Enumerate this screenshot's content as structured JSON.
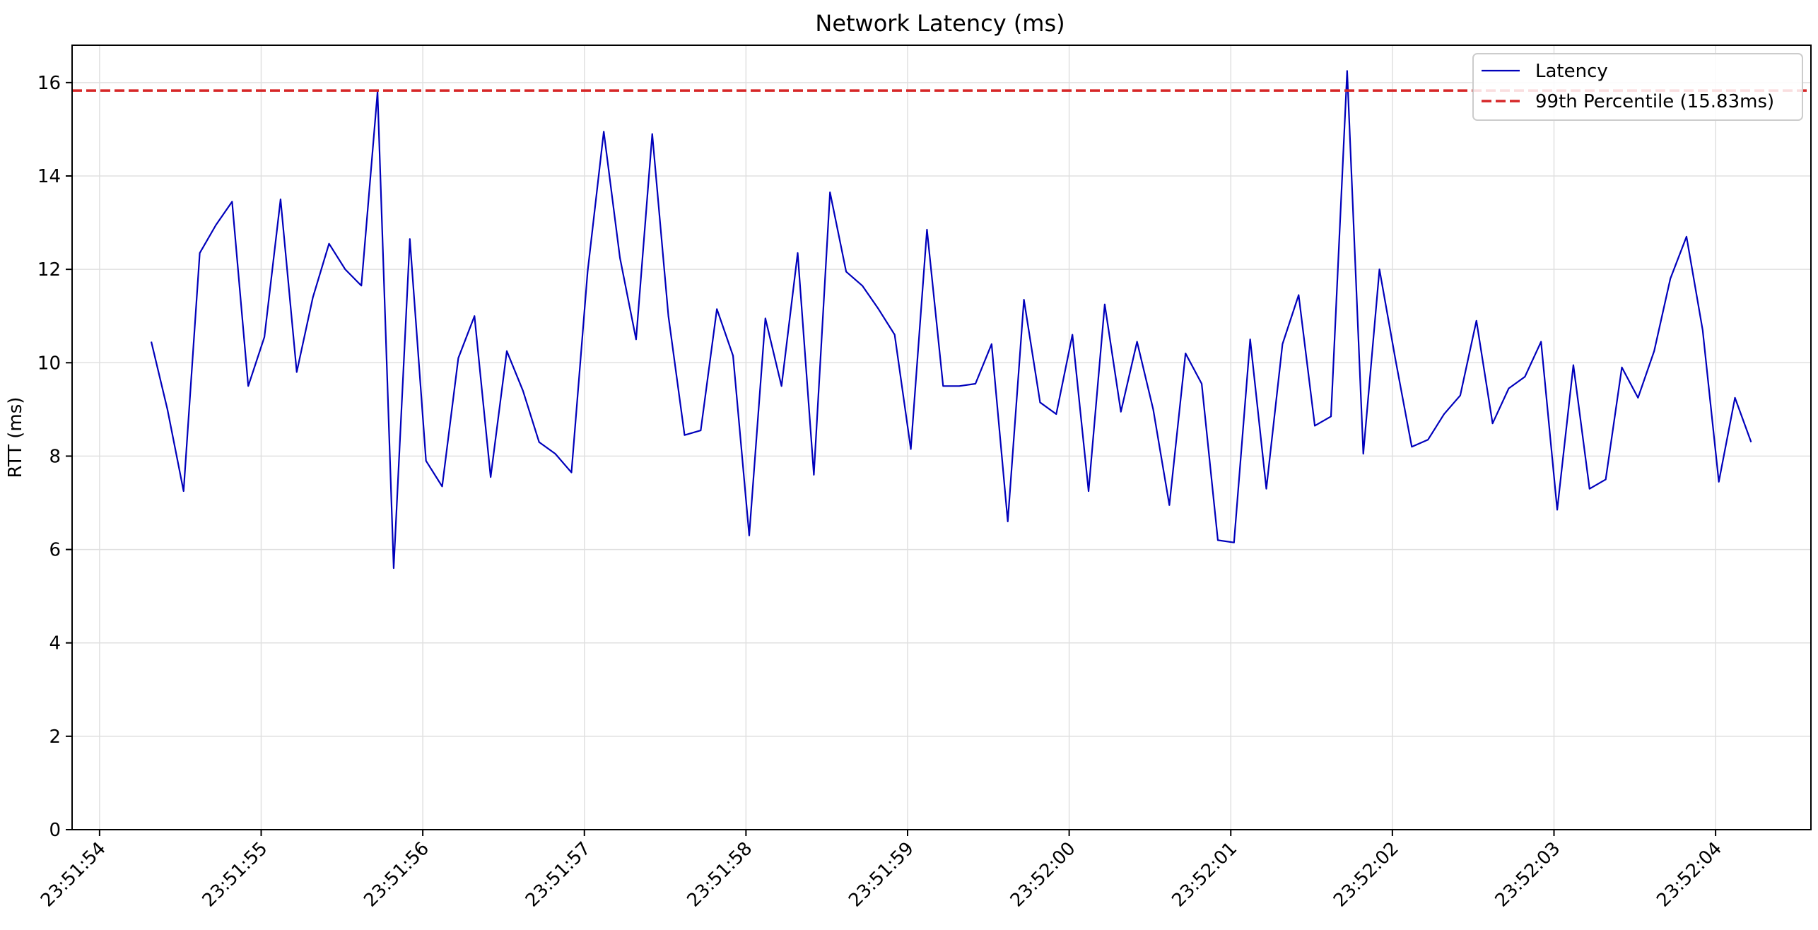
{
  "chart_data": {
    "type": "line",
    "title": "Network Latency (ms)",
    "xlabel": "",
    "ylabel": "RTT (ms)",
    "ylim": [
      0,
      16.8
    ],
    "xlim": [
      "23:51:53.830",
      "23:52:04.590"
    ],
    "yticks": [
      0,
      2,
      4,
      6,
      8,
      10,
      12,
      14,
      16
    ],
    "xticks": [
      "23:51:54",
      "23:51:55",
      "23:51:56",
      "23:51:57",
      "23:51:58",
      "23:51:59",
      "23:52:00",
      "23:52:01",
      "23:52:02",
      "23:52:03",
      "23:52:04"
    ],
    "grid": true,
    "legend_position": "top-right",
    "series": [
      {
        "name": "Latency",
        "color": "#0000bb",
        "line_style": "solid",
        "x": [
          "23:51:54.320",
          "23:51:54.420",
          "23:51:54.520",
          "23:51:54.620",
          "23:51:54.720",
          "23:51:54.820",
          "23:51:54.920",
          "23:51:55.020",
          "23:51:55.120",
          "23:51:55.220",
          "23:51:55.320",
          "23:51:55.420",
          "23:51:55.520",
          "23:51:55.620",
          "23:51:55.720",
          "23:51:55.820",
          "23:51:55.920",
          "23:51:56.020",
          "23:51:56.120",
          "23:51:56.220",
          "23:51:56.320",
          "23:51:56.420",
          "23:51:56.520",
          "23:51:56.620",
          "23:51:56.720",
          "23:51:56.820",
          "23:51:56.920",
          "23:51:57.020",
          "23:51:57.120",
          "23:51:57.220",
          "23:51:57.320",
          "23:51:57.420",
          "23:51:57.520",
          "23:51:57.620",
          "23:51:57.720",
          "23:51:57.820",
          "23:51:57.920",
          "23:51:58.020",
          "23:51:58.120",
          "23:51:58.220",
          "23:51:58.320",
          "23:51:58.420",
          "23:51:58.520",
          "23:51:58.620",
          "23:51:58.720",
          "23:51:58.820",
          "23:51:58.920",
          "23:51:59.020",
          "23:51:59.120",
          "23:51:59.220",
          "23:51:59.320",
          "23:51:59.420",
          "23:51:59.520",
          "23:51:59.620",
          "23:51:59.720",
          "23:51:59.820",
          "23:51:59.920",
          "23:52:00.020",
          "23:52:00.120",
          "23:52:00.220",
          "23:52:00.320",
          "23:52:00.420",
          "23:52:00.520",
          "23:52:00.620",
          "23:52:00.720",
          "23:52:00.820",
          "23:52:00.920",
          "23:52:01.020",
          "23:52:01.120",
          "23:52:01.220",
          "23:52:01.320",
          "23:52:01.420",
          "23:52:01.520",
          "23:52:01.620",
          "23:52:01.720",
          "23:52:01.820",
          "23:52:01.920",
          "23:52:02.020",
          "23:52:02.120",
          "23:52:02.220",
          "23:52:02.320",
          "23:52:02.420",
          "23:52:02.520",
          "23:52:02.620",
          "23:52:02.720",
          "23:52:02.820",
          "23:52:02.920",
          "23:52:03.020",
          "23:52:03.120",
          "23:52:03.220",
          "23:52:03.320",
          "23:52:03.420",
          "23:52:03.520",
          "23:52:03.620",
          "23:52:03.720",
          "23:52:03.820",
          "23:52:03.920",
          "23:52:04.020",
          "23:52:04.120",
          "23:52:04.220"
        ],
        "y": [
          10.45,
          9.0,
          7.25,
          12.35,
          12.95,
          13.45,
          9.5,
          10.55,
          13.5,
          9.8,
          11.4,
          12.55,
          12.0,
          11.65,
          15.8,
          5.6,
          12.65,
          7.9,
          7.35,
          10.1,
          11.0,
          7.55,
          10.25,
          9.4,
          8.3,
          8.05,
          7.65,
          11.95,
          14.95,
          12.25,
          10.5,
          14.9,
          11.0,
          8.45,
          8.55,
          11.15,
          10.15,
          6.3,
          10.95,
          9.5,
          12.35,
          7.6,
          13.65,
          11.95,
          11.65,
          11.15,
          10.6,
          8.15,
          12.85,
          9.5,
          9.5,
          9.55,
          10.4,
          6.6,
          11.35,
          9.15,
          8.9,
          10.6,
          7.25,
          11.25,
          8.95,
          10.45,
          9.0,
          6.95,
          10.2,
          9.55,
          6.2,
          6.15,
          10.5,
          7.3,
          10.4,
          11.45,
          8.65,
          8.85,
          16.25,
          8.05,
          12.0,
          10.05,
          8.2,
          8.35,
          8.9,
          9.3,
          10.9,
          8.7,
          9.45,
          9.7,
          10.45,
          6.85,
          9.95,
          7.3,
          7.5,
          9.9,
          9.25,
          10.25,
          11.8,
          12.7,
          10.7,
          7.45,
          9.25,
          8.3
        ]
      },
      {
        "name": "99th Percentile (15.83ms)",
        "color": "#d62728",
        "line_style": "dashed",
        "y_constant": 15.83
      }
    ]
  }
}
